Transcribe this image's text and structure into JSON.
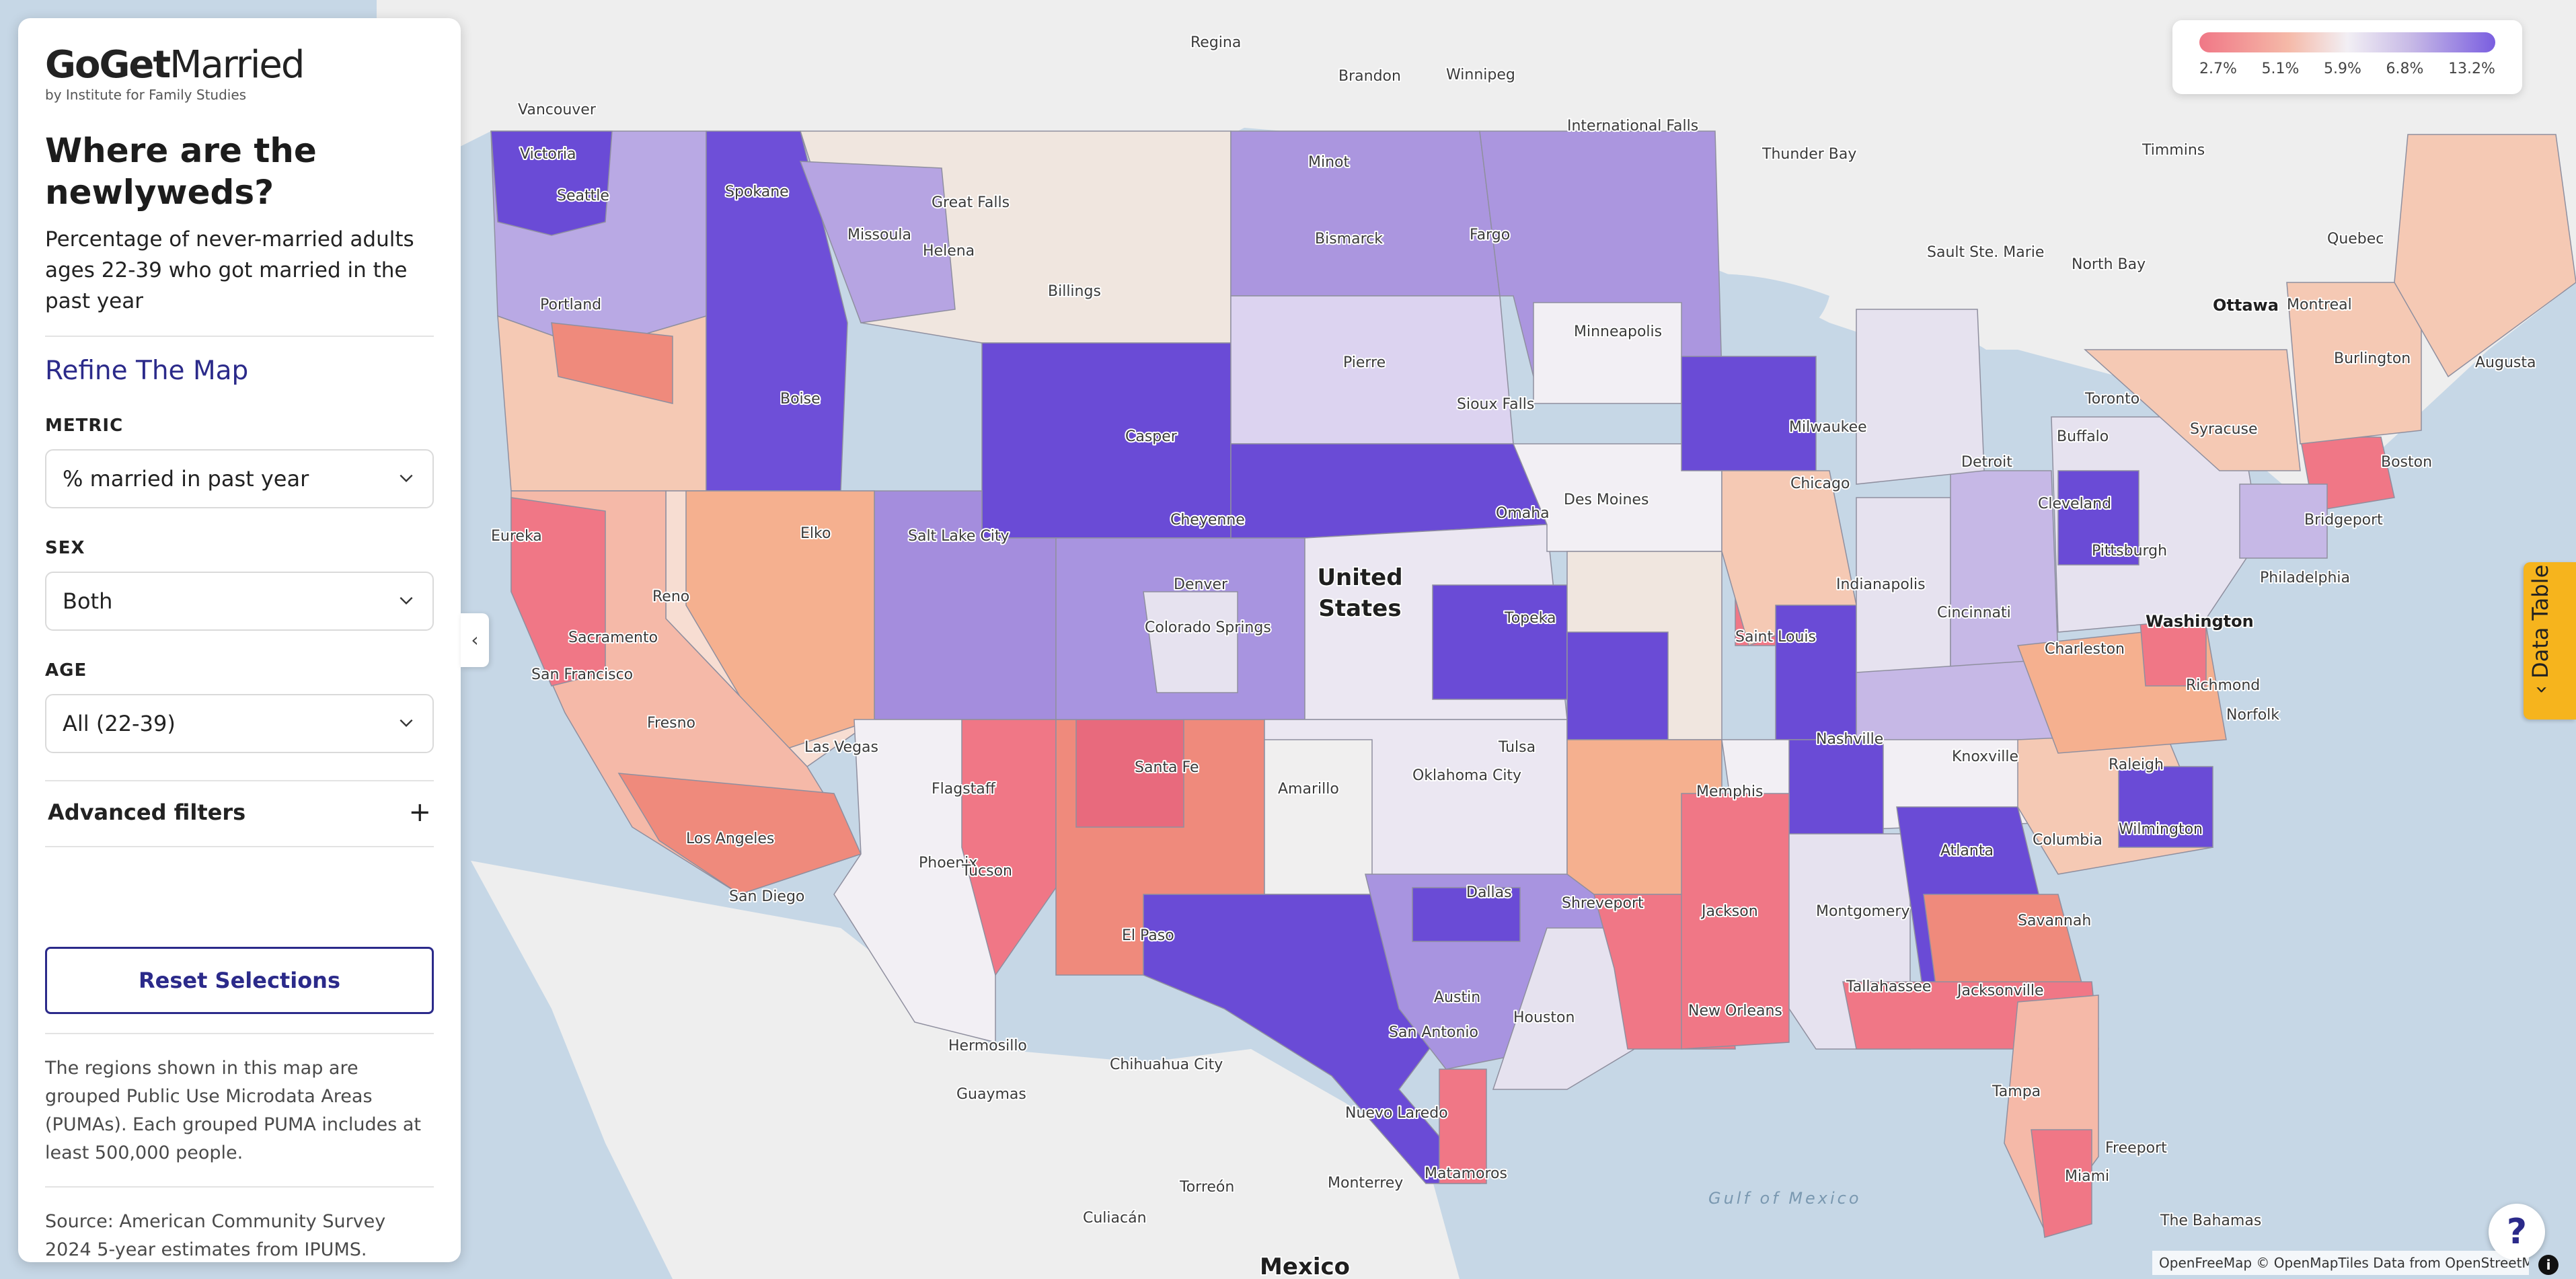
{
  "logo": {
    "bold": "GoGet",
    "rest": "Married",
    "sub": "by Institute for Family Studies"
  },
  "headline": "Where are the newlyweds?",
  "subhead": "Percentage of never-married adults ages 22-39 who got married in the past year",
  "refine_title": "Refine The Map",
  "filters": {
    "metric_label": "METRIC",
    "metric_value": "% married in past year",
    "sex_label": "SEX",
    "sex_value": "Both",
    "age_label": "AGE",
    "age_value": "All (22-39)"
  },
  "advanced_filters": "Advanced filters",
  "reset_label": "Reset Selections",
  "note": "The regions shown in this map are grouped Public Use Microdata Areas (PUMAs). Each grouped PUMA includes at least 500,000 people.",
  "source": "Source: American Community Survey 2024 5-year estimates from IPUMS.",
  "legend": {
    "ticks": [
      "2.7%",
      "5.1%",
      "5.9%",
      "6.8%",
      "13.2%"
    ],
    "colors": [
      "#f07786",
      "#f5b9a8",
      "#f2eff4",
      "#c6b8e6",
      "#7a5ee0"
    ]
  },
  "data_table_label": "Data Table",
  "help_label": "?",
  "info_label": "i",
  "attribution": "OpenFreeMap © OpenMapTiles Data from OpenStreetMap",
  "map": {
    "country": "United States",
    "mexico": "Mexico",
    "gulf": "Gulf of Mexico",
    "cities": {
      "regina": "Regina",
      "brandon": "Brandon",
      "winnipeg": "Winnipeg",
      "vancouver": "Vancouver",
      "victoria": "Victoria",
      "seattle": "Seattle",
      "spokane": "Spokane",
      "great_falls": "Great Falls",
      "missoula": "Missoula",
      "helena": "Helena",
      "minot": "Minot",
      "bismarck": "Bismarck",
      "fargo": "Fargo",
      "intl_falls": "International Falls",
      "thunder_bay": "Thunder Bay",
      "timmins": "Timmins",
      "sault": "Sault Ste. Marie",
      "north_bay": "North Bay",
      "quebec": "Quebec",
      "ottawa": "Ottawa",
      "montreal": "Montreal",
      "portland": "Portland",
      "billings": "Billings",
      "boise": "Boise",
      "casper": "Casper",
      "pierre": "Pierre",
      "sioux_falls": "Sioux Falls",
      "minneapolis": "Minneapolis",
      "burlington": "Burlington",
      "augusta": "Augusta",
      "toronto": "Toronto",
      "buffalo": "Buffalo",
      "syracuse": "Syracuse",
      "milwaukee": "Milwaukee",
      "detroit": "Detroit",
      "chicago": "Chicago",
      "des_moines": "Des Moines",
      "omaha": "Omaha",
      "cheyenne": "Cheyenne",
      "salt_lake": "Salt Lake City",
      "elko": "Elko",
      "eureka": "Eureka",
      "reno": "Reno",
      "sacramento": "Sacramento",
      "san_francisco": "San Francisco",
      "fresno": "Fresno",
      "boston": "Boston",
      "bridgeport": "Bridgeport",
      "cleveland": "Cleveland",
      "pittsburgh": "Pittsburgh",
      "philadelphia": "Philadelphia",
      "washington": "Washington",
      "indianapolis": "Indianapolis",
      "cincinnati": "Cincinnati",
      "denver": "Denver",
      "colorado_springs": "Colorado Springs",
      "topeka": "Topeka",
      "saint_louis": "Saint Louis",
      "charleston": "Charleston",
      "richmond": "Richmond",
      "norfolk": "Norfolk",
      "las_vegas": "Las Vegas",
      "flagstaff": "Flagstaff",
      "santa_fe": "Santa Fe",
      "amarillo": "Amarillo",
      "oklahoma_city": "Oklahoma City",
      "tulsa": "Tulsa",
      "nashville": "Nashville",
      "knoxville": "Knoxville",
      "raleigh": "Raleigh",
      "memphis": "Memphis",
      "los_angeles": "Los Angeles",
      "phoenix": "Phoenix",
      "san_diego": "San Diego",
      "tucson": "Tucson",
      "el_paso": "El Paso",
      "dallas": "Dallas",
      "shreveport": "Shreveport",
      "atlanta": "Atlanta",
      "columbia": "Columbia",
      "wilmington": "Wilmington",
      "jackson": "Jackson",
      "montgomery": "Montgomery",
      "savannah": "Savannah",
      "austin": "Austin",
      "houston": "Houston",
      "new_orleans": "New Orleans",
      "tallahassee": "Tallahassee",
      "jacksonville": "Jacksonville",
      "san_antonio": "San Antonio",
      "hermosillo": "Hermosillo",
      "chihuahua": "Chihuahua City",
      "guaymas": "Guaymas",
      "nuevo_laredo": "Nuevo Laredo",
      "monterrey": "Monterrey",
      "matamoros": "Matamoros",
      "torreon": "Torreón",
      "culiacan": "Culiacán",
      "tampa": "Tampa",
      "freeport": "Freeport",
      "miami": "Miami",
      "bahamas": "The Bahamas"
    }
  }
}
